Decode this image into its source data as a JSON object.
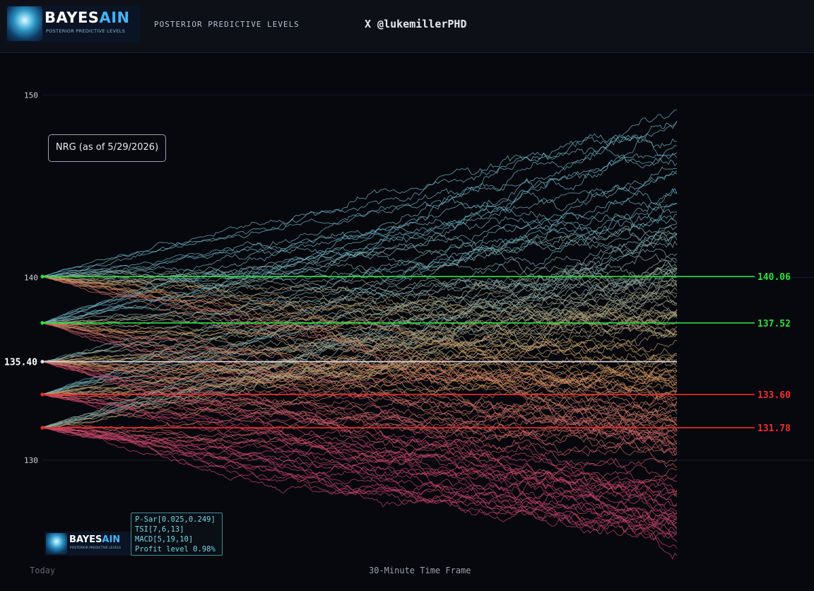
{
  "header": {
    "logo_word_a": "BAYES",
    "logo_word_b": "AIN",
    "logo_subtitle": "POSTERIOR PREDICTIVE LEVELS",
    "title": "POSTERIOR PREDICTIVE LEVELS",
    "handle": "X @lukemillerPHD"
  },
  "chart_data": {
    "type": "line",
    "ticker_label": "NRG (as of 5/29/2026)",
    "ylim": [
      125.2,
      152.3
    ],
    "y_ticks": [
      {
        "value": 150,
        "label": "150"
      },
      {
        "value": 140,
        "label": "140"
      },
      {
        "value": 130,
        "label": "130"
      }
    ],
    "current_price": {
      "value": 135.4,
      "label": "135.40",
      "color": "#d7d7e2"
    },
    "levels": [
      {
        "value": 140.06,
        "label": "140.06",
        "color": "#27e23a",
        "kind": "upper"
      },
      {
        "value": 137.52,
        "label": "137.52",
        "color": "#27e23a",
        "kind": "upper"
      },
      {
        "value": 133.6,
        "label": "133.60",
        "color": "#f02d2d",
        "kind": "lower"
      },
      {
        "value": 131.78,
        "label": "131.78",
        "color": "#f02d2d",
        "kind": "lower"
      }
    ],
    "simulated_paths": {
      "count": 150,
      "start_values": [
        140.06,
        137.52,
        135.4,
        133.6,
        131.78
      ],
      "end_range": [
        126.2,
        148.9
      ],
      "color_high": "#6fb8c9",
      "color_mid": "#cc9a5c",
      "color_low": "#c9466b"
    },
    "x_start_label": "Today",
    "x_axis_label": "30-Minute Time Frame"
  },
  "watermark": {
    "word_a": "BAYES",
    "word_b": "AIN",
    "subtitle": "POSTERIOR PREDICTIVE LEVELS"
  },
  "indicators": {
    "psar": "P-Sar[0.025,0.249]",
    "tsi": "TSI[7,6,13]",
    "macd": "MACD[5,19,10]",
    "profit": "Profit level 0.98%"
  }
}
